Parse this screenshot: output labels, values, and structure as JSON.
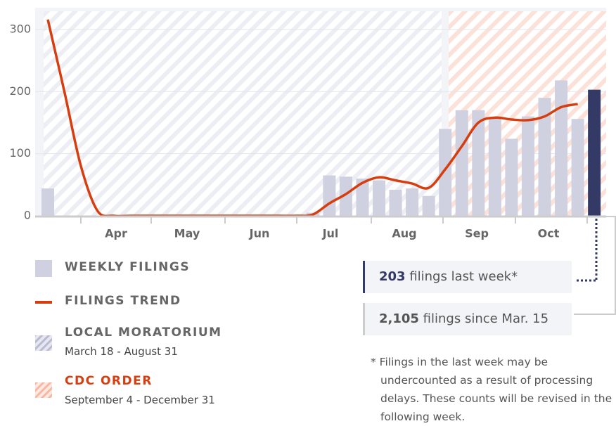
{
  "chart_data": {
    "type": "bar",
    "values": [
      44,
      0,
      0,
      0,
      0,
      0,
      0,
      0,
      0,
      0,
      0,
      0,
      0,
      0,
      0,
      0,
      5,
      65,
      63,
      60,
      57,
      42,
      44,
      32,
      140,
      170,
      170,
      157,
      124,
      160,
      190,
      218,
      156,
      203
    ],
    "trend": [
      316,
      200,
      80,
      8,
      0,
      0,
      0,
      0,
      0,
      0,
      0,
      0,
      0,
      0,
      0,
      0,
      2,
      20,
      35,
      53,
      62,
      57,
      52,
      45,
      75,
      112,
      150,
      158,
      155,
      154,
      160,
      175,
      180,
      null
    ],
    "bar_color": "#cfd0e0",
    "last_bar_color": "#343a66",
    "trend_color": "#d63d0f",
    "month_labels": [
      "Apr",
      "May",
      "Jun",
      "Jul",
      "Aug",
      "Sep",
      "Oct"
    ],
    "ylim": [
      0,
      335
    ],
    "yticks": [
      0,
      100,
      200,
      300
    ],
    "grid": true,
    "legend": [
      {
        "label": "WEEKLY FILINGS"
      },
      {
        "label": "FILINGS TREND"
      },
      {
        "label": "LOCAL MORATORIUM",
        "sub": "March 18 - August 31"
      },
      {
        "label": "CDC ORDER",
        "sub": "September 4 - December 31"
      }
    ],
    "last_week": {
      "count": "203",
      "text": "filings last week*"
    },
    "since": {
      "count": "2,105",
      "text": "filings since Mar. 15"
    },
    "footnote": "* Filings in the last week may be undercounted as a result of processing delays. These counts will be revised in the following week."
  }
}
